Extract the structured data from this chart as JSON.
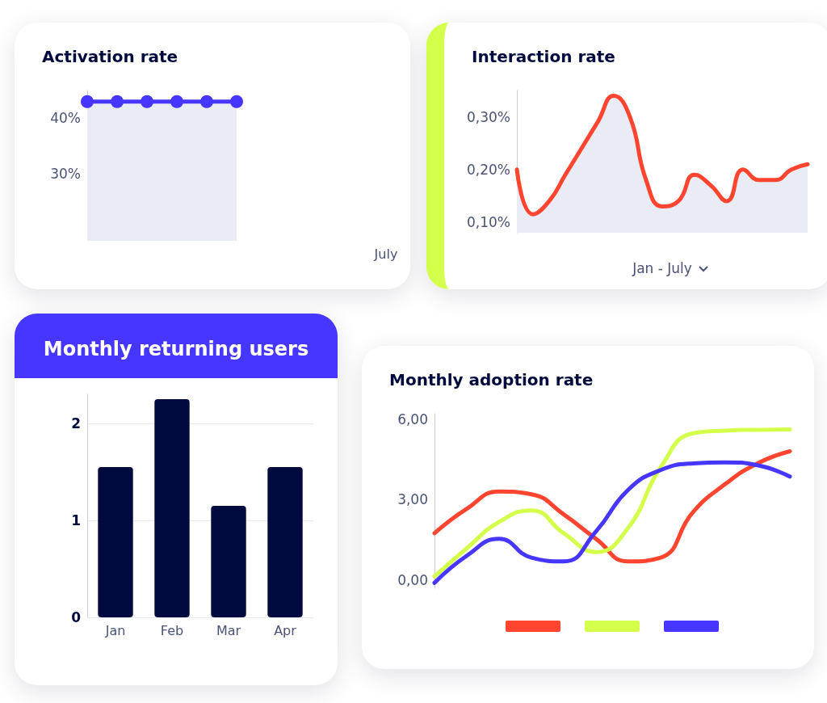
{
  "chart_data": [
    {
      "type": "area",
      "title": "Interaction rate",
      "xlabel": "Jan - July",
      "categories": [
        null,
        null,
        null,
        null,
        null,
        null,
        null,
        null,
        null,
        null,
        null,
        null,
        null,
        null,
        null,
        null,
        null,
        null,
        null
      ],
      "color": "#ff4530",
      "values": [
        0.2,
        0.115,
        0.14,
        0.19,
        0.24,
        0.29,
        0.34,
        0.3,
        0.18,
        0.13,
        0.14,
        0.19,
        0.17,
        0.14,
        0.2,
        0.18,
        0.18,
        0.2,
        0.21
      ],
      "ylim": [
        0.08,
        0.35
      ],
      "yticks": [
        {
          "value": 0.1,
          "label": "0,10%"
        },
        {
          "value": 0.2,
          "label": "0,20%"
        },
        {
          "value": 0.3,
          "label": "0,30%"
        }
      ],
      "tick_labels": "y"
    },
    {
      "type": "area",
      "title": "Activation rate",
      "categories": [
        null,
        null,
        null,
        null,
        null,
        null,
        null,
        null,
        null,
        null,
        "July"
      ],
      "color": "#4636ff",
      "marker": "circle",
      "values": [
        43,
        43,
        43,
        43,
        43,
        43,
        null,
        null,
        null,
        null,
        null
      ],
      "ylim": [
        18,
        45
      ],
      "yticks": [
        {
          "value": 30,
          "label": "30%"
        },
        {
          "value": 40,
          "label": "40%"
        }
      ]
    },
    {
      "type": "bar",
      "title": "Monthly returning users",
      "categories": [
        "Jan",
        "Feb",
        "Mar",
        "Apr"
      ],
      "color": "#010a3e",
      "values": [
        1.55,
        2.25,
        1.15,
        1.55
      ],
      "ylim": [
        0,
        2.3
      ],
      "yticks": [
        0,
        1,
        2
      ],
      "grid": "y"
    },
    {
      "type": "line",
      "title": "Monthly adoption rate",
      "categories": [
        null,
        null,
        null,
        null,
        null,
        null,
        null,
        null,
        null,
        null,
        null,
        null
      ],
      "tick_labels": "y",
      "series": [
        {
          "color": "#ff4530",
          "values": [
            1.75,
            2.66,
            3.3,
            3.2,
            2.45,
            1.54,
            0.7,
            0.84,
            2.53,
            3.58,
            4.35,
            4.8
          ]
        },
        {
          "color": "#d4ff4a",
          "values": [
            0.14,
            1.19,
            2.17,
            2.6,
            1.75,
            1.05,
            1.96,
            4.2,
            5.47,
            5.57,
            5.6,
            5.61
          ]
        },
        {
          "color": "#4636ff",
          "values": [
            -0.1,
            0.91,
            1.54,
            0.84,
            0.7,
            1.82,
            3.37,
            4.1,
            4.35,
            4.39,
            4.28,
            3.86
          ]
        }
      ],
      "ylim": [
        -0.3,
        6.2
      ],
      "yticks": [
        {
          "value": 0,
          "label": "0,00"
        },
        {
          "value": 3,
          "label": "3,00"
        },
        {
          "value": 6,
          "label": "6,00"
        }
      ]
    }
  ]
}
